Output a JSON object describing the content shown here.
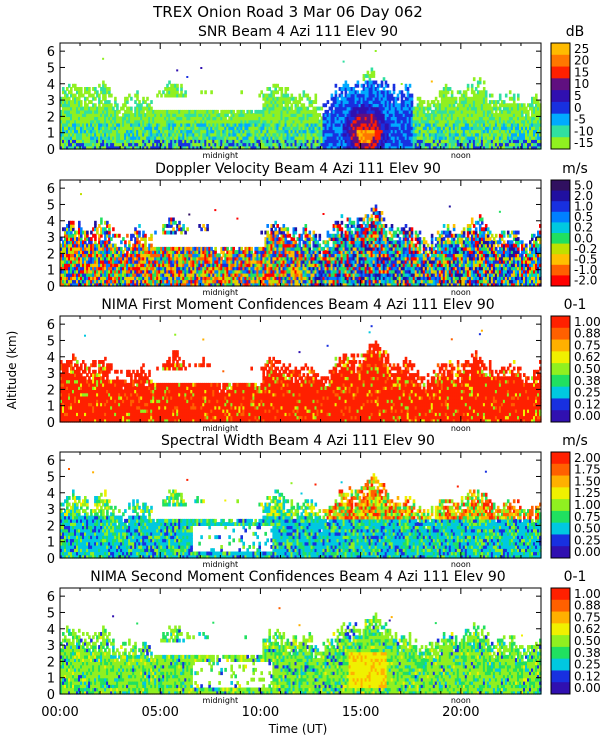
{
  "title": "TREX Onion Road    3 Mar 06 Day 062",
  "ylabel": "Altitude (km)",
  "xlabel": "Time (UT)",
  "x_ticks": [
    "00:00",
    "05:00",
    "10:00",
    "15:00",
    "20:00"
  ],
  "x_tick_values": [
    0,
    5,
    10,
    15,
    20
  ],
  "xlim": [
    0,
    24
  ],
  "midnight_label": "midnight",
  "noon_label": "noon",
  "midnight_hour": 8,
  "noon_hour": 20,
  "chart_data": [
    {
      "type": "heatmap",
      "title": "SNR Beam 4 Azi 111 Elev 90",
      "unit": "dB",
      "ylim": [
        0,
        6.5
      ],
      "y_ticks": [
        "0",
        "1",
        "2",
        "3",
        "4",
        "5",
        "6"
      ],
      "colorbar_labels": [
        "25",
        "20",
        "15",
        "10",
        "5",
        "0",
        "-5",
        "-10",
        "-15"
      ],
      "colors": [
        "#ffbb00",
        "#ff7700",
        "#ff2000",
        "#601080",
        "#3010b0",
        "#1830e0",
        "#00aaff",
        "#30e0a0",
        "#90f020"
      ],
      "dominant_values": [
        -15,
        -10,
        5,
        15
      ]
    },
    {
      "type": "heatmap",
      "title": "Doppler Velocity Beam 4 Azi 111 Elev 90",
      "unit": "m/s",
      "ylim": [
        0,
        6.5
      ],
      "y_ticks": [
        "0",
        "1",
        "2",
        "3",
        "4",
        "5",
        "6"
      ],
      "colorbar_labels": [
        "5.0",
        "2.0",
        "1.0",
        "0.5",
        "0.2",
        "0.0",
        "-0.2",
        "-0.5",
        "-1.0",
        "-2.0"
      ],
      "colors": [
        "#301060",
        "#2010a0",
        "#1830e0",
        "#0080ff",
        "#00c8e0",
        "#20e060",
        "#c0e000",
        "#ffc000",
        "#ff6000",
        "#ff0000"
      ],
      "dominant_values": [
        -2.0,
        -1.0,
        0.0,
        2.0
      ]
    },
    {
      "type": "heatmap",
      "title": "NIMA First Moment Confidences Beam 4 Azi 111 Elev 90",
      "unit": "0-1",
      "ylim": [
        0,
        6.5
      ],
      "y_ticks": [
        "0",
        "1",
        "2",
        "3",
        "4",
        "5",
        "6"
      ],
      "colorbar_labels": [
        "1.00",
        "0.88",
        "0.75",
        "0.62",
        "0.50",
        "0.38",
        "0.25",
        "0.12",
        "0.00"
      ],
      "colors": [
        "#ff2000",
        "#ff6000",
        "#ffb000",
        "#f0f000",
        "#90f020",
        "#20e060",
        "#00c8e0",
        "#1830e0",
        "#3010b0"
      ],
      "dominant_values": [
        1.0,
        0.88
      ]
    },
    {
      "type": "heatmap",
      "title": "Spectral Width Beam 4 Azi 111 Elev 90",
      "unit": "m/s",
      "ylim": [
        0,
        6.5
      ],
      "y_ticks": [
        "0",
        "1",
        "2",
        "3",
        "4",
        "5",
        "6"
      ],
      "colorbar_labels": [
        "2.00",
        "1.75",
        "1.50",
        "1.25",
        "1.00",
        "0.75",
        "0.50",
        "0.25",
        "0.00"
      ],
      "colors": [
        "#ff2000",
        "#ff6000",
        "#ffb000",
        "#f0f000",
        "#90f020",
        "#20e060",
        "#00c8e0",
        "#1830e0",
        "#3010b0"
      ],
      "dominant_values": [
        0.5,
        0.75,
        1.0
      ]
    },
    {
      "type": "heatmap",
      "title": "NIMA Second Moment Confidences Beam 4 Azi 111 Elev 90",
      "unit": "0-1",
      "ylim": [
        0,
        6.5
      ],
      "y_ticks": [
        "0",
        "1",
        "2",
        "3",
        "4",
        "5",
        "6"
      ],
      "colorbar_labels": [
        "1.00",
        "0.88",
        "0.75",
        "0.62",
        "0.50",
        "0.38",
        "0.25",
        "0.12",
        "0.00"
      ],
      "colors": [
        "#ff2000",
        "#ff6000",
        "#ffb000",
        "#f0f000",
        "#90f020",
        "#20e060",
        "#00c8e0",
        "#1830e0",
        "#3010b0"
      ],
      "dominant_values": [
        0.5,
        0.38
      ]
    }
  ]
}
